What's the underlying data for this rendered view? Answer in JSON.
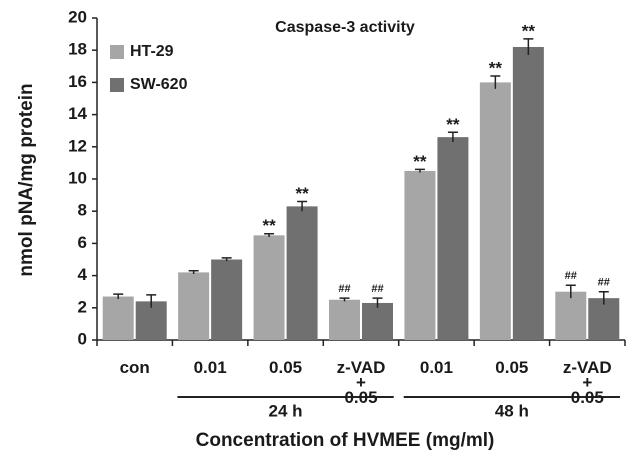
{
  "chart_data": {
    "type": "bar",
    "title": "Caspase-3 activity",
    "y_label": "nmol pNA/mg protein",
    "x_label": "Concentration of HVMEE (mg/ml)",
    "categories": [
      "con",
      "0.01",
      "0.05",
      "z-VAD\n+\n0.05",
      "0.01",
      "0.05",
      "z-VAD\n+\n0.05"
    ],
    "groups": [
      {
        "label": "24 h",
        "start": 1,
        "end": 3
      },
      {
        "label": "48 h",
        "start": 4,
        "end": 6
      }
    ],
    "series": [
      {
        "name": "HT-29",
        "color": "#a6a6a6",
        "values": [
          2.7,
          4.2,
          6.5,
          2.5,
          10.5,
          16.0,
          3.0
        ],
        "errors": [
          0.15,
          0.1,
          0.1,
          0.1,
          0.1,
          0.4,
          0.4
        ],
        "annotations": [
          null,
          null,
          "**",
          "##",
          "**",
          "**",
          "##"
        ]
      },
      {
        "name": "SW-620",
        "color": "#707070",
        "values": [
          2.4,
          5.0,
          8.3,
          2.3,
          12.6,
          18.2,
          2.6
        ],
        "errors": [
          0.4,
          0.1,
          0.3,
          0.3,
          0.3,
          0.5,
          0.4
        ],
        "annotations": [
          null,
          null,
          "**",
          "##",
          "**",
          "**",
          "##"
        ]
      }
    ],
    "ylim": [
      0,
      20
    ],
    "yticks": [
      0,
      2,
      4,
      6,
      8,
      10,
      12,
      14,
      16,
      18,
      20
    ],
    "legend": "top-left"
  }
}
